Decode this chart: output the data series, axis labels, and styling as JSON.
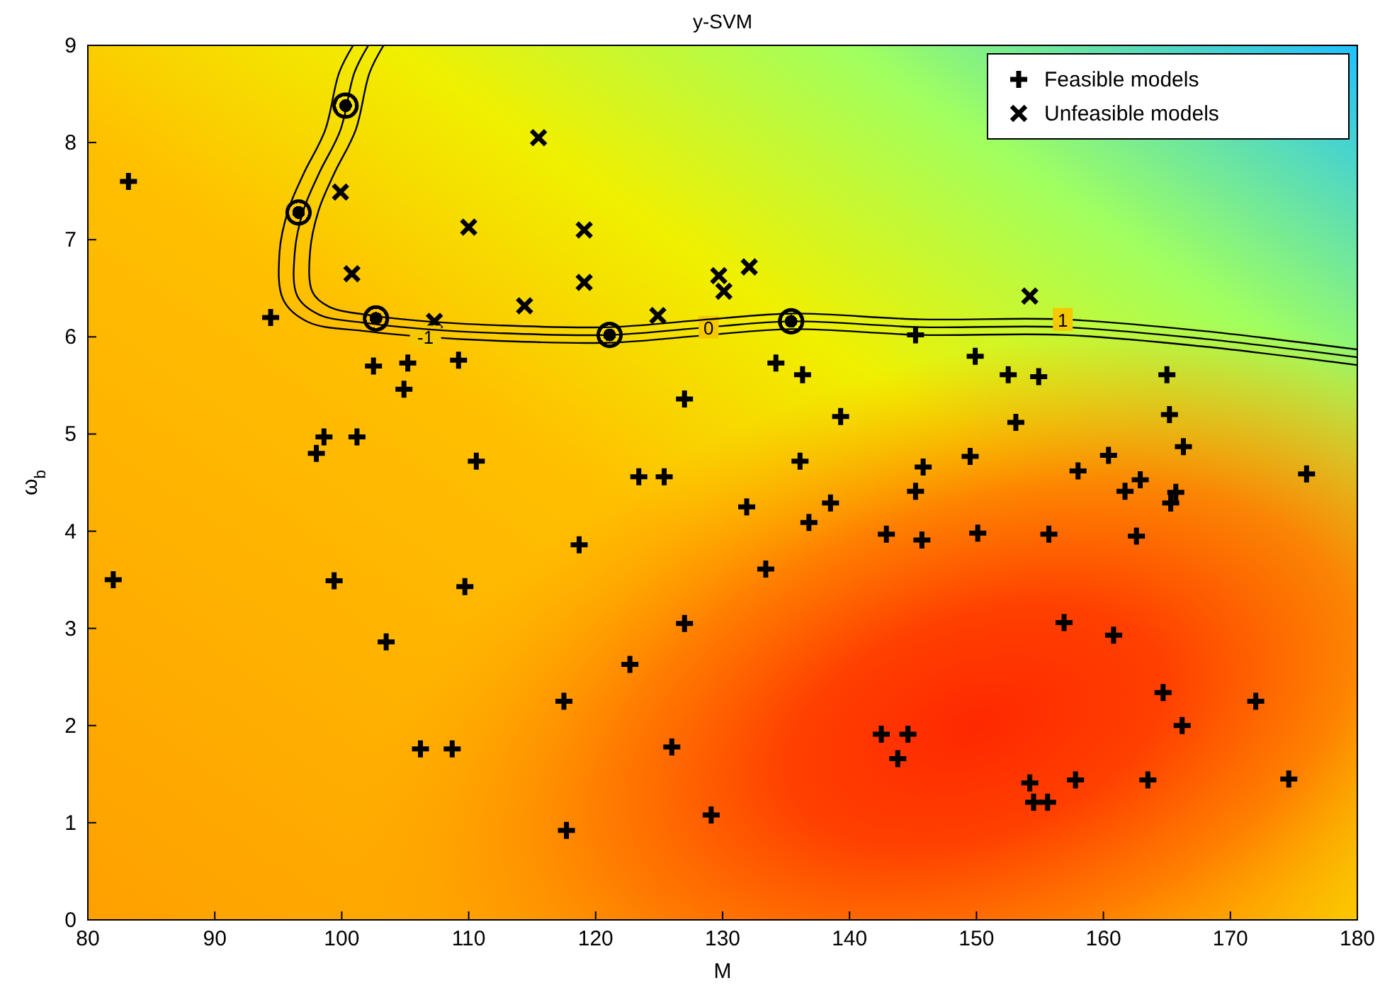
{
  "chart_data": {
    "type": "scatter",
    "title": "y-SVM",
    "xlabel": "M",
    "ylabel": "ω$_{b}$",
    "xlim": [
      80,
      180
    ],
    "ylim": [
      0,
      9
    ],
    "xticks": [
      80,
      90,
      100,
      110,
      120,
      130,
      140,
      150,
      160,
      170,
      180
    ],
    "yticks": [
      0,
      1,
      2,
      3,
      4,
      5,
      6,
      7,
      8,
      9
    ],
    "grid": false,
    "legend": "top right",
    "series": [
      {
        "name": "Feasible models",
        "color": "#000000",
        "marker": "cross",
        "x": [
          83.2,
          82,
          94.4,
          98,
          98.6,
          101.2,
          99.4,
          102.5,
          105.2,
          104.9,
          103.5,
          106.2,
          108.7,
          109.2,
          110.6,
          109.7,
          117.5,
          117.7,
          118.7,
          123.4,
          125.4,
          122.7,
          127,
          127,
          126,
          129.1,
          131.9,
          133.4,
          134.2,
          136.3,
          136.1,
          136.8,
          138.5,
          139.3,
          142.9,
          142.5,
          143.8,
          144.6,
          145.2,
          145.2,
          145.8,
          145.7,
          149.5,
          149.9,
          150.1,
          152.5,
          153.1,
          154.9,
          155.7,
          154.2,
          154.5,
          155.6,
          156.9,
          157.8,
          158,
          160.4,
          160.8,
          161.7,
          162.9,
          162.6,
          163.5,
          165,
          165.2,
          165.3,
          165.7,
          164.7,
          166.2,
          166.3,
          172,
          174.6,
          176
        ],
        "values": [
          7.6,
          3.5,
          6.2,
          4.8,
          4.97,
          4.97,
          3.49,
          5.7,
          5.73,
          5.46,
          2.86,
          1.76,
          1.76,
          5.76,
          4.72,
          3.43,
          2.25,
          0.92,
          3.86,
          4.56,
          4.56,
          2.63,
          5.36,
          3.05,
          1.78,
          1.08,
          4.25,
          3.61,
          5.73,
          5.61,
          4.72,
          4.09,
          4.29,
          5.18,
          3.97,
          1.91,
          1.66,
          1.91,
          6.02,
          4.41,
          4.66,
          3.91,
          4.77,
          5.8,
          3.98,
          5.61,
          5.12,
          5.59,
          3.97,
          1.41,
          1.21,
          1.21,
          3.06,
          1.44,
          4.62,
          4.78,
          2.93,
          4.41,
          4.53,
          3.95,
          1.44,
          5.61,
          5.2,
          4.29,
          4.4,
          2.34,
          2,
          4.87,
          2.25,
          1.45,
          4.59
        ]
      },
      {
        "name": "Unfeasible models",
        "color": "#000000",
        "marker": "x",
        "x": [
          115.5,
          99.9,
          110,
          119.1,
          119.1,
          100.8,
          107.3,
          114.4,
          129.7,
          130.1,
          132.1,
          124.9,
          154.2
        ],
        "values": [
          8.05,
          7.49,
          7.13,
          7.1,
          6.56,
          6.65,
          6.16,
          6.32,
          6.63,
          6.47,
          6.72,
          6.22,
          6.42
        ]
      },
      {
        "color": "#000000",
        "marker": "circle",
        "x": [
          100.3,
          96.6,
          102.7,
          121.1,
          135.4
        ],
        "values": [
          8.38,
          7.28,
          6.19,
          6.02,
          6.16
        ]
      },
      {
        "name": "-1",
        "type": "line",
        "color": "#000000",
        "marker": "none",
        "x": [
          100.9,
          99.8,
          98.7,
          97,
          95.8,
          95.1,
          95.4,
          97.4,
          101.8,
          106.6,
          112.1,
          121.1,
          128.9,
          135.4,
          145.6,
          156.8,
          167.9,
          180
        ],
        "values": [
          9,
          8.72,
          8.13,
          7.68,
          7.31,
          6.87,
          6.38,
          6.15,
          6.06,
          6.0,
          5.96,
          5.94,
          6.02,
          6.08,
          6.02,
          6.02,
          5.9,
          5.71
        ]
      },
      {
        "name": "0",
        "type": "line",
        "color": "#000000",
        "marker": "none",
        "x": [
          102.1,
          101,
          99.9,
          98.2,
          97,
          96.3,
          96.5,
          98.2,
          102.1,
          106.6,
          112.1,
          121.1,
          128.9,
          135.4,
          145.6,
          156.8,
          167.9,
          180
        ],
        "values": [
          9,
          8.72,
          8.13,
          7.68,
          7.31,
          6.87,
          6.42,
          6.23,
          6.14,
          6.08,
          6.04,
          6.02,
          6.1,
          6.16,
          6.1,
          6.1,
          5.98,
          5.79
        ]
      },
      {
        "name": "1",
        "type": "line",
        "color": "#000000",
        "marker": "none",
        "x": [
          103.3,
          102.2,
          101.1,
          99.4,
          98.2,
          97.5,
          97.7,
          99,
          102.4,
          106.6,
          112.1,
          121.1,
          128.9,
          135.4,
          145.6,
          156.8,
          167.9,
          180
        ],
        "values": [
          9,
          8.72,
          8.13,
          7.68,
          7.31,
          6.87,
          6.46,
          6.31,
          6.22,
          6.16,
          6.12,
          6.1,
          6.18,
          6.24,
          6.18,
          6.18,
          6.06,
          5.87
        ]
      }
    ]
  }
}
